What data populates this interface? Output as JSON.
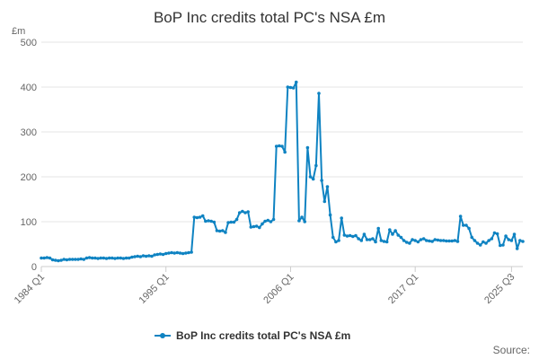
{
  "chart_data": {
    "type": "line",
    "title": "BoP Inc credits total PC's NSA £m",
    "ylabel": "£m",
    "xlabel": "",
    "ylim": [
      0,
      500
    ],
    "yticks": [
      0,
      100,
      200,
      300,
      400,
      500
    ],
    "xticks": [
      "1984 Q1",
      "1995 Q1",
      "2006 Q1",
      "2017 Q1",
      "2025 Q3"
    ],
    "grid": true,
    "legend_position": "bottom",
    "series": [
      {
        "name": "BoP Inc credits total PC's NSA £m",
        "color": "#0f83c2",
        "start": "1984 Q1",
        "values": [
          19,
          19,
          20,
          19,
          15,
          14,
          13,
          14,
          16,
          15,
          16,
          16,
          16,
          16,
          17,
          16,
          19,
          20,
          19,
          19,
          18,
          19,
          19,
          18,
          19,
          19,
          18,
          19,
          19,
          18,
          19,
          19,
          21,
          22,
          23,
          22,
          24,
          23,
          24,
          23,
          26,
          27,
          28,
          27,
          29,
          30,
          31,
          30,
          31,
          30,
          29,
          30,
          31,
          32,
          110,
          109,
          110,
          113,
          101,
          102,
          101,
          99,
          80,
          79,
          80,
          76,
          98,
          99,
          99,
          105,
          120,
          123,
          120,
          122,
          88,
          89,
          90,
          87,
          95,
          101,
          103,
          100,
          105,
          268,
          269,
          268,
          255,
          400,
          399,
          398,
          411,
          102,
          110,
          100,
          265,
          200,
          195,
          225,
          386,
          192,
          145,
          178,
          115,
          65,
          55,
          58,
          108,
          70,
          68,
          69,
          67,
          69,
          62,
          58,
          72,
          60,
          60,
          62,
          55,
          85,
          58,
          56,
          55,
          82,
          72,
          80,
          70,
          65,
          58,
          54,
          52,
          60,
          58,
          55,
          60,
          62,
          58,
          57,
          56,
          60,
          59,
          58,
          58,
          57,
          57,
          57,
          58,
          56,
          112,
          92,
          92,
          85,
          65,
          58,
          52,
          48,
          55,
          52,
          58,
          62,
          75,
          73,
          47,
          48,
          68,
          60,
          58,
          72,
          40,
          58,
          56
        ]
      }
    ]
  },
  "source_label": "Source:"
}
